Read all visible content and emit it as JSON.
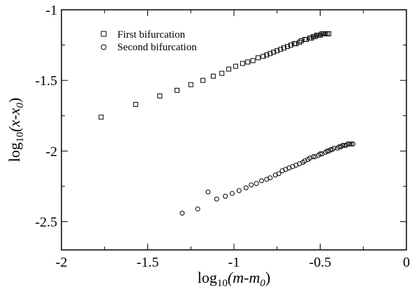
{
  "chart_data": {
    "type": "scatter",
    "title": "",
    "xlabel": {
      "main": "log",
      "sub": "10",
      "open": "(m-m",
      "sub2": "0",
      "close": ")"
    },
    "ylabel": {
      "main": "log",
      "sub": "10",
      "open": "(x-x",
      "sub2": "0",
      "close": ")"
    },
    "xlim": [
      -2,
      0
    ],
    "ylim": [
      -2.7,
      -1
    ],
    "xticks": [
      -2,
      -1.5,
      -1,
      -0.5,
      0
    ],
    "xtick_labels": [
      "-2",
      "-1.5",
      "-1",
      "-0.5",
      "0"
    ],
    "yticks": [
      -2.5,
      -2,
      -1.5,
      -1
    ],
    "ytick_labels": [
      "-2.5",
      "-2",
      "-1.5",
      "-1"
    ],
    "grid": false,
    "legend_position": "top-left",
    "series": [
      {
        "name": "First bifurcation",
        "marker": "square",
        "x": [
          -1.77,
          -1.57,
          -1.43,
          -1.33,
          -1.25,
          -1.18,
          -1.12,
          -1.07,
          -1.03,
          -0.99,
          -0.95,
          -0.92,
          -0.89,
          -0.86,
          -0.83,
          -0.81,
          -0.79,
          -0.77,
          -0.75,
          -0.73,
          -0.71,
          -0.69,
          -0.67,
          -0.65,
          -0.64,
          -0.62,
          -0.61,
          -0.59,
          -0.58,
          -0.56,
          -0.55,
          -0.54,
          -0.53,
          -0.52,
          -0.51,
          -0.5,
          -0.49,
          -0.48,
          -0.47,
          -0.46,
          -0.45
        ],
        "y": [
          -1.76,
          -1.67,
          -1.61,
          -1.57,
          -1.53,
          -1.5,
          -1.47,
          -1.45,
          -1.42,
          -1.4,
          -1.38,
          -1.37,
          -1.36,
          -1.34,
          -1.33,
          -1.32,
          -1.31,
          -1.3,
          -1.29,
          -1.28,
          -1.27,
          -1.26,
          -1.25,
          -1.24,
          -1.24,
          -1.23,
          -1.22,
          -1.21,
          -1.21,
          -1.2,
          -1.2,
          -1.19,
          -1.19,
          -1.18,
          -1.18,
          -1.18,
          -1.17,
          -1.17,
          -1.17,
          -1.17,
          -1.17
        ]
      },
      {
        "name": "Second bifurcation",
        "marker": "circle",
        "x": [
          -1.3,
          -1.21,
          -1.15,
          -1.1,
          -1.05,
          -1.01,
          -0.97,
          -0.93,
          -0.9,
          -0.87,
          -0.84,
          -0.81,
          -0.79,
          -0.76,
          -0.74,
          -0.72,
          -0.7,
          -0.68,
          -0.66,
          -0.64,
          -0.62,
          -0.6,
          -0.59,
          -0.57,
          -0.56,
          -0.54,
          -0.53,
          -0.51,
          -0.5,
          -0.49,
          -0.47,
          -0.46,
          -0.45,
          -0.44,
          -0.43,
          -0.42,
          -0.4,
          -0.39,
          -0.38,
          -0.37,
          -0.36,
          -0.35,
          -0.34,
          -0.33,
          -0.32,
          -0.31
        ],
        "y": [
          -2.44,
          -2.41,
          -2.29,
          -2.34,
          -2.32,
          -2.3,
          -2.28,
          -2.26,
          -2.24,
          -2.23,
          -2.21,
          -2.2,
          -2.19,
          -2.17,
          -2.16,
          -2.14,
          -2.13,
          -2.12,
          -2.11,
          -2.1,
          -2.09,
          -2.08,
          -2.07,
          -2.06,
          -2.05,
          -2.04,
          -2.04,
          -2.03,
          -2.02,
          -2.02,
          -2.01,
          -2.0,
          -2.0,
          -1.99,
          -1.99,
          -1.98,
          -1.98,
          -1.97,
          -1.97,
          -1.96,
          -1.96,
          -1.96,
          -1.95,
          -1.95,
          -1.95,
          -1.95
        ]
      }
    ]
  }
}
